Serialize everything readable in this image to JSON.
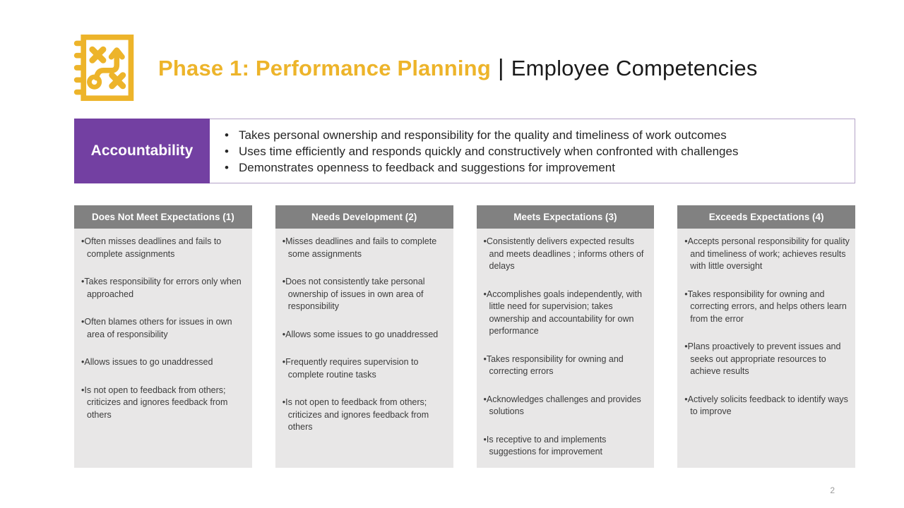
{
  "header": {
    "title_highlight": "Phase 1: Performance Planning",
    "separator": "|",
    "subtitle": "Employee Competencies"
  },
  "competency": {
    "name": "Accountability",
    "bullets": [
      "Takes personal ownership and responsibility for the quality and timeliness of work outcomes",
      "Uses time efficiently and responds quickly and constructively when confronted with challenges",
      "Demonstrates openness to feedback and suggestions for improvement"
    ]
  },
  "columns": [
    {
      "header": "Does Not Meet Expectations (1)",
      "items": [
        "Often misses deadlines and fails to complete assignments",
        "Takes responsibility for errors only when approached",
        "Often blames others for issues in own area of responsibility",
        "Allows issues to go unaddressed",
        "Is not open to feedback from others; criticizes and ignores feedback from others"
      ]
    },
    {
      "header": "Needs Development (2)",
      "items": [
        "Misses deadlines and fails to complete some assignments",
        "Does not consistently take personal ownership of issues in own area of responsibility",
        "Allows some issues to go unaddressed",
        "Frequently requires supervision to complete routine tasks",
        "Is not open to feedback from others; criticizes and ignores feedback from others"
      ]
    },
    {
      "header": "Meets Expectations (3)",
      "items": [
        "Consistently delivers expected results and meets deadlines ; informs others of delays",
        "Accomplishes goals independently, with little need for supervision; takes ownership and accountability for own performance",
        "Takes responsibility for owning and correcting errors",
        "Acknowledges challenges and provides solutions",
        "Is receptive to and implements suggestions for improvement"
      ]
    },
    {
      "header": "Exceeds Expectations (4)",
      "items": [
        "Accepts personal responsibility for quality and timeliness of work; achieves results with little oversight",
        "Takes responsibility for owning and correcting errors, and helps others learn from the error",
        "Plans proactively to prevent issues and seeks out appropriate resources to achieve results",
        "Actively solicits feedback to identify ways to improve"
      ]
    }
  ],
  "footer": {
    "page_number": "2"
  },
  "colors": {
    "accent_gold": "#edb42a",
    "accent_purple": "#7340a2",
    "purple_border": "#b3a2c7",
    "header_gray": "#818181",
    "column_bg": "#e8e7e7",
    "text_dark": "#3c3c3c"
  },
  "icons": {
    "header_icon": "strategy-playbook-icon"
  }
}
